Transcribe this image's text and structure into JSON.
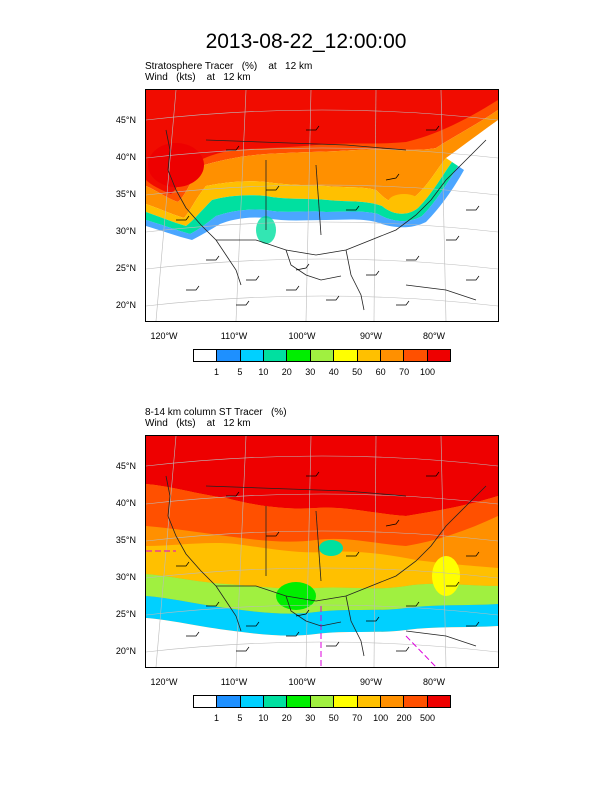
{
  "title": "2013-08-22_12:00:00",
  "panels": [
    {
      "label_line1": "Stratosphere Tracer   (%)    at   12 km",
      "label_line2": "Wind   (kts)    at   12 km",
      "lat_labels": [
        "45°N",
        "40°N",
        "35°N",
        "30°N",
        "25°N",
        "20°N"
      ],
      "lon_labels": [
        "120°W",
        "110°W",
        "100°W",
        "90°W",
        "80°W"
      ],
      "colorbar": {
        "colors": [
          "#ffffff",
          "#1e90ff",
          "#00d0ff",
          "#00e0a0",
          "#00ee00",
          "#a0f040",
          "#ffff00",
          "#ffc000",
          "#ff9000",
          "#ff5000",
          "#ee0000"
        ],
        "labels": [
          "1",
          "5",
          "10",
          "20",
          "30",
          "40",
          "50",
          "60",
          "70",
          "100"
        ]
      }
    },
    {
      "label_line1": "8-14 km column ST Tracer   (%)",
      "label_line2": "Wind   (kts)    at   12 km",
      "lat_labels": [
        "45°N",
        "40°N",
        "35°N",
        "30°N",
        "25°N",
        "20°N"
      ],
      "lon_labels": [
        "120°W",
        "110°W",
        "100°W",
        "90°W",
        "80°W"
      ],
      "colorbar": {
        "colors": [
          "#ffffff",
          "#1e90ff",
          "#00d0ff",
          "#00e0a0",
          "#00ee00",
          "#a0f040",
          "#ffff00",
          "#ffc000",
          "#ff9000",
          "#ff5000",
          "#ee0000"
        ],
        "labels": [
          "1",
          "5",
          "10",
          "20",
          "30",
          "50",
          "70",
          "100",
          "200",
          "500"
        ]
      }
    }
  ]
}
